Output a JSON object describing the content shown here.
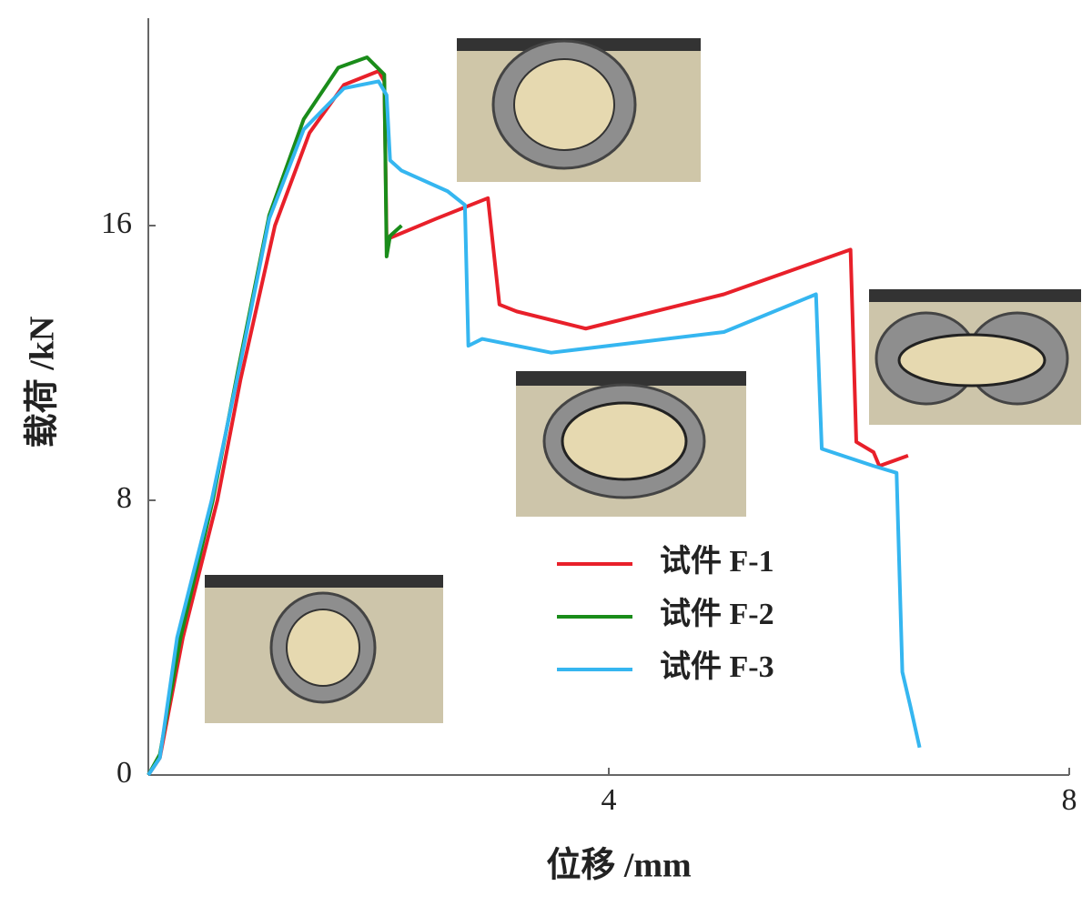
{
  "chart_data": {
    "type": "line",
    "x_label": "位移 /mm",
    "y_label": "载荷 /kN",
    "xlim": [
      0,
      8
    ],
    "ylim": [
      0,
      22
    ],
    "xticks": [
      4,
      8
    ],
    "yticks": [
      0,
      8,
      16
    ],
    "series": [
      {
        "name": "试件 F-1",
        "color": "#e8202a",
        "x": [
          0,
          0.1,
          0.3,
          0.6,
          0.8,
          1.1,
          1.4,
          1.7,
          2.0,
          2.05,
          2.07,
          2.5,
          2.95,
          3.05,
          3.2,
          3.8,
          5.0,
          6.1,
          6.15,
          6.3,
          6.35,
          6.6
        ],
        "values": [
          0,
          0.5,
          4,
          8,
          11.5,
          16,
          18.7,
          20.1,
          20.5,
          20.2,
          15.6,
          16.2,
          16.8,
          13.7,
          13.5,
          13.0,
          14.0,
          15.3,
          9.7,
          9.4,
          9.0,
          9.3
        ]
      },
      {
        "name": "试件 F-2",
        "color": "#1a8c1a",
        "x": [
          0,
          0.1,
          0.28,
          0.56,
          0.78,
          1.05,
          1.35,
          1.65,
          1.9,
          2.05,
          2.07,
          2.1,
          2.2
        ],
        "values": [
          0,
          0.6,
          4,
          8,
          11.8,
          16.3,
          19.1,
          20.6,
          20.9,
          20.4,
          15.1,
          15.7,
          16.0
        ]
      },
      {
        "name": "试件 F-3",
        "color": "#35b6f0",
        "x": [
          0,
          0.1,
          0.25,
          0.55,
          0.8,
          1.05,
          1.35,
          1.7,
          2.0,
          2.07,
          2.1,
          2.2,
          2.6,
          2.75,
          2.78,
          2.9,
          3.5,
          5.0,
          5.8,
          5.85,
          6.3,
          6.5,
          6.55,
          6.62,
          6.7
        ],
        "values": [
          0,
          0.5,
          4,
          8,
          12,
          16.2,
          18.8,
          20.0,
          20.2,
          19.8,
          17.9,
          17.6,
          17.0,
          16.6,
          12.5,
          12.7,
          12.3,
          12.9,
          14.0,
          9.5,
          9.0,
          8.8,
          3.0,
          2.0,
          0.8
        ]
      }
    ]
  }
}
